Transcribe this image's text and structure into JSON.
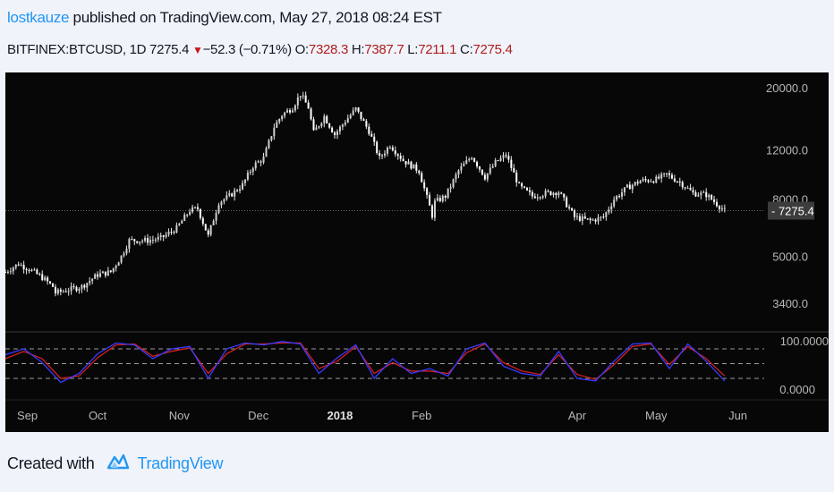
{
  "header": {
    "author": "lostkauze",
    "published_text": " published on TradingView.com, May 27, 2018 08:24 EST"
  },
  "symbol_bar": {
    "symbol": "BITFINEX:BTCUSD, 1D",
    "last": "7275.4",
    "change": "−52.3 (−0.71%)",
    "open_label": "O:",
    "open": "7328.3",
    "high_label": "H:",
    "high": "7387.7",
    "low_label": "L:",
    "low": "7211.1",
    "close_label": "C:",
    "close": "7275.4"
  },
  "footer": {
    "created_with": "Created with",
    "brand": "TradingView"
  },
  "colors": {
    "background": "#070707",
    "candle": "#e6e6e6",
    "stoch_k": "#3a3aff",
    "stoch_d": "#d42020",
    "last_price_tag": "#3c3c3c"
  },
  "chart_data": {
    "type": "line",
    "price_axis": {
      "scale": "log",
      "tick_labels": [
        "20000.0",
        "12000.0",
        "8000.0",
        "5000.0",
        "3400.0"
      ],
      "ticks": [
        20000,
        12000,
        8000,
        5000,
        3400
      ],
      "last_price": 7275.4,
      "last_price_label": "7275.4"
    },
    "time_axis": {
      "labels": [
        "Sep",
        "Oct",
        "Nov",
        "Dec",
        "2018",
        "Feb",
        "Apr",
        "May",
        "Jun"
      ]
    },
    "price_series": {
      "dates": [
        "2017-08-27",
        "2017-09-01",
        "2017-09-05",
        "2017-09-10",
        "2017-09-14",
        "2017-09-15",
        "2017-09-20",
        "2017-09-25",
        "2017-10-01",
        "2017-10-06",
        "2017-10-10",
        "2017-10-13",
        "2017-10-20",
        "2017-10-25",
        "2017-10-31",
        "2017-11-05",
        "2017-11-08",
        "2017-11-12",
        "2017-11-16",
        "2017-11-20",
        "2017-11-25",
        "2017-11-29",
        "2017-12-03",
        "2017-12-07",
        "2017-12-10",
        "2017-12-14",
        "2017-12-17",
        "2017-12-20",
        "2017-12-22",
        "2017-12-26",
        "2017-12-30",
        "2018-01-03",
        "2018-01-07",
        "2018-01-12",
        "2018-01-16",
        "2018-01-20",
        "2018-01-25",
        "2018-01-31",
        "2018-02-05",
        "2018-02-06",
        "2018-02-10",
        "2018-02-15",
        "2018-02-20",
        "2018-02-25",
        "2018-03-01",
        "2018-03-05",
        "2018-03-10",
        "2018-03-15",
        "2018-03-20",
        "2018-03-25",
        "2018-03-31",
        "2018-04-06",
        "2018-04-11",
        "2018-04-15",
        "2018-04-20",
        "2018-04-25",
        "2018-05-01",
        "2018-05-05",
        "2018-05-10",
        "2018-05-15",
        "2018-05-20",
        "2018-05-27"
      ],
      "close": [
        4400,
        4700,
        4500,
        4200,
        3900,
        3700,
        3800,
        3900,
        4300,
        4400,
        5000,
        5700,
        5700,
        5800,
        6300,
        7300,
        7400,
        5900,
        7800,
        8200,
        9000,
        10500,
        11200,
        14500,
        16000,
        17000,
        19000,
        17000,
        13800,
        15800,
        13600,
        15200,
        16800,
        14000,
        11200,
        12500,
        11000,
        10100,
        7000,
        7800,
        8200,
        10100,
        11400,
        9600,
        10800,
        11500,
        8900,
        8200,
        8400,
        8500,
        6900,
        6700,
        6900,
        8000,
        8800,
        9300,
        9400,
        9800,
        9200,
        8400,
        8300,
        7275.4
      ]
    },
    "stochastic": {
      "name": "",
      "levels": [
        80,
        50,
        20
      ],
      "range": [
        0,
        100
      ],
      "range_labels": [
        "100.0000",
        "0.0000"
      ],
      "dates": [
        "2017-08-27",
        "2017-09-03",
        "2017-09-10",
        "2017-09-17",
        "2017-09-24",
        "2017-10-01",
        "2017-10-08",
        "2017-10-15",
        "2017-10-22",
        "2017-10-29",
        "2017-11-05",
        "2017-11-12",
        "2017-11-19",
        "2017-11-26",
        "2017-12-03",
        "2017-12-10",
        "2017-12-17",
        "2017-12-24",
        "2017-12-31",
        "2018-01-07",
        "2018-01-14",
        "2018-01-21",
        "2018-01-28",
        "2018-02-04",
        "2018-02-11",
        "2018-02-18",
        "2018-02-25",
        "2018-03-04",
        "2018-03-11",
        "2018-03-18",
        "2018-03-25",
        "2018-04-01",
        "2018-04-08",
        "2018-04-15",
        "2018-04-22",
        "2018-04-29",
        "2018-05-06",
        "2018-05-13",
        "2018-05-20",
        "2018-05-27"
      ],
      "k": [
        68,
        80,
        52,
        12,
        30,
        70,
        92,
        88,
        60,
        80,
        85,
        20,
        80,
        92,
        88,
        95,
        90,
        30,
        62,
        88,
        20,
        60,
        30,
        40,
        25,
        80,
        92,
        45,
        30,
        25,
        75,
        20,
        15,
        55,
        90,
        92,
        40,
        90,
        55,
        15
      ],
      "d": [
        60,
        75,
        60,
        20,
        25,
        62,
        88,
        90,
        65,
        75,
        82,
        30,
        70,
        90,
        90,
        92,
        92,
        40,
        55,
        85,
        30,
        52,
        35,
        35,
        30,
        72,
        90,
        52,
        35,
        28,
        68,
        28,
        18,
        48,
        85,
        90,
        48,
        85,
        60,
        25
      ]
    }
  }
}
